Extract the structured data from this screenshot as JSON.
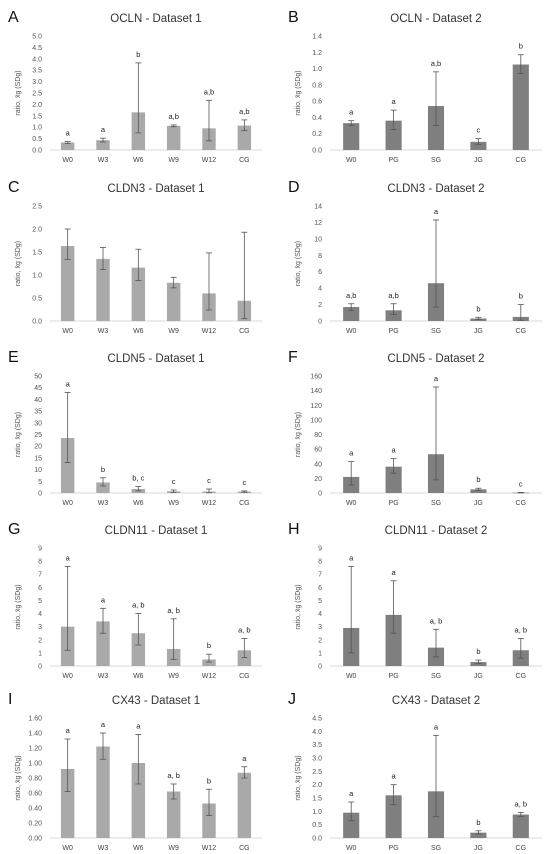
{
  "colors": {
    "bar_dataset1": "#a9a9a9",
    "bar_dataset2": "#7f7f7f",
    "axis": "#d9d9d9",
    "error_bar": "#555555"
  },
  "chart_data": [
    {
      "panel": "A",
      "type": "bar",
      "title": "OCLN - Dataset 1",
      "ylabel": "ratio, x̄g (SDg)",
      "ylim": [
        0,
        5
      ],
      "yticks": [
        "0.0",
        "0.5",
        "1.0",
        "1.5",
        "2.0",
        "2.5",
        "3.0",
        "3.5",
        "4.0",
        "4.5",
        "5.0"
      ],
      "categories": [
        "W0",
        "W3",
        "W6",
        "W9",
        "W12",
        "CG"
      ],
      "values": [
        0.33,
        0.43,
        1.65,
        1.06,
        0.95,
        1.07
      ],
      "err_low": [
        0.29,
        0.35,
        0.75,
        1.02,
        0.4,
        0.85
      ],
      "err_high": [
        0.37,
        0.52,
        3.82,
        1.1,
        2.18,
        1.32
      ],
      "labels": [
        "a",
        "a",
        "b",
        "a,b",
        "a,b",
        "a,b"
      ]
    },
    {
      "panel": "B",
      "type": "bar",
      "title": "OCLN - Dataset 2",
      "ylabel": "ratio, x̄g (SDg)",
      "ylim": [
        0,
        1.4
      ],
      "yticks": [
        "0.0",
        "0.2",
        "0.4",
        "0.6",
        "0.8",
        "1.0",
        "1.2",
        "1.4"
      ],
      "categories": [
        "W0",
        "PG",
        "SG",
        "JG",
        "CG"
      ],
      "values": [
        0.33,
        0.36,
        0.54,
        0.1,
        1.05
      ],
      "err_low": [
        0.3,
        0.25,
        0.3,
        0.07,
        0.94
      ],
      "err_high": [
        0.36,
        0.49,
        0.96,
        0.14,
        1.17
      ],
      "labels": [
        "a",
        "a",
        "a,b",
        "c",
        "b"
      ]
    },
    {
      "panel": "C",
      "type": "bar",
      "title": "CLDN3 - Dataset 1",
      "ylabel": "ratio, x̄g (SDg)",
      "ylim": [
        0,
        2.5
      ],
      "yticks": [
        "0.0",
        "0.5",
        "1.0",
        "1.5",
        "2.0",
        "2.5"
      ],
      "categories": [
        "W0",
        "W3",
        "W6",
        "W9",
        "W12",
        "CG"
      ],
      "values": [
        1.63,
        1.35,
        1.16,
        0.83,
        0.6,
        0.44
      ],
      "err_low": [
        1.34,
        1.12,
        0.88,
        0.72,
        0.24,
        0.05
      ],
      "err_high": [
        2.0,
        1.6,
        1.56,
        0.95,
        1.48,
        1.93
      ],
      "labels": [
        "",
        "",
        "",
        "",
        "",
        ""
      ]
    },
    {
      "panel": "D",
      "type": "bar",
      "title": "CLDN3 - Dataset 2",
      "ylabel": "ratio, x̄g (SDg)",
      "ylim": [
        0,
        14
      ],
      "yticks": [
        "0",
        "2",
        "4",
        "6",
        "8",
        "10",
        "12",
        "14"
      ],
      "categories": [
        "W0",
        "PG",
        "SG",
        "JG",
        "CG"
      ],
      "values": [
        1.7,
        1.3,
        4.6,
        0.3,
        0.5
      ],
      "err_low": [
        1.3,
        0.8,
        1.7,
        0.2,
        0.1
      ],
      "err_high": [
        2.1,
        2.1,
        12.3,
        0.45,
        2.0
      ],
      "labels": [
        "a,b",
        "a,b",
        "a",
        "b",
        "b"
      ]
    },
    {
      "panel": "E",
      "type": "bar",
      "title": "CLDN5 - Dataset 1",
      "ylabel": "ratio, x̄g (SDg)",
      "ylim": [
        0,
        50
      ],
      "yticks": [
        "0",
        "5",
        "10",
        "15",
        "20",
        "25",
        "30",
        "35",
        "40",
        "45",
        "50"
      ],
      "categories": [
        "W0",
        "W3",
        "W6",
        "W9",
        "W12",
        "CG"
      ],
      "values": [
        23.5,
        4.5,
        1.7,
        0.7,
        0.6,
        0.6
      ],
      "err_low": [
        13,
        3.0,
        0.9,
        0.3,
        0.1,
        0.3
      ],
      "err_high": [
        43,
        6.5,
        2.8,
        1.3,
        1.7,
        0.9
      ],
      "labels": [
        "a",
        "b",
        "b, c",
        "c",
        "c",
        "c"
      ]
    },
    {
      "panel": "F",
      "type": "bar",
      "title": "CLDN5 - Dataset 2",
      "ylabel": "ratio, x̄g (SDg)",
      "ylim": [
        0,
        160
      ],
      "yticks": [
        "0",
        "20",
        "40",
        "60",
        "80",
        "100",
        "120",
        "140",
        "160"
      ],
      "categories": [
        "W0",
        "PG",
        "SG",
        "JG",
        "CG"
      ],
      "values": [
        22,
        36,
        53,
        5,
        0.5
      ],
      "err_low": [
        11,
        27,
        18,
        3.5,
        0.2
      ],
      "err_high": [
        43,
        47,
        145,
        6.5,
        0.8
      ],
      "labels": [
        "a",
        "a",
        "a",
        "b",
        "c"
      ]
    },
    {
      "panel": "G",
      "type": "bar",
      "title": "CLDN11 - Dataset 1",
      "ylabel": "ratio, x̄g (SDg)",
      "ylim": [
        0,
        9
      ],
      "yticks": [
        "0",
        "1",
        "2",
        "3",
        "4",
        "5",
        "6",
        "7",
        "8",
        "9"
      ],
      "categories": [
        "W0",
        "W3",
        "W6",
        "W9",
        "W12",
        "CG"
      ],
      "values": [
        3.0,
        3.4,
        2.5,
        1.3,
        0.5,
        1.2
      ],
      "err_low": [
        1.2,
        2.5,
        1.6,
        0.5,
        0.3,
        0.65
      ],
      "err_high": [
        7.6,
        4.4,
        4.0,
        3.6,
        0.9,
        2.1
      ],
      "labels": [
        "a",
        "a",
        "a, b",
        "a, b",
        "b",
        "a, b"
      ]
    },
    {
      "panel": "H",
      "type": "bar",
      "title": "CLDN11 - Dataset 2",
      "ylabel": "ratio, x̄g (SDg)",
      "ylim": [
        0,
        9
      ],
      "yticks": [
        "0",
        "1",
        "2",
        "3",
        "4",
        "5",
        "6",
        "7",
        "8",
        "9"
      ],
      "categories": [
        "W0",
        "PG",
        "SG",
        "JG",
        "CG"
      ],
      "values": [
        2.9,
        3.9,
        1.4,
        0.3,
        1.2
      ],
      "err_low": [
        1.0,
        2.5,
        0.7,
        0.2,
        0.6
      ],
      "err_high": [
        7.6,
        6.5,
        2.8,
        0.45,
        2.1
      ],
      "labels": [
        "a",
        "a",
        "a, b",
        "b",
        "a, b"
      ]
    },
    {
      "panel": "I",
      "type": "bar",
      "title": "CX43 - Dataset 1",
      "ylabel": "ratio, x̄g (SDg)",
      "ylim": [
        0,
        1.6
      ],
      "yticks": [
        "0.00",
        "0.20",
        "0.40",
        "0.60",
        "0.80",
        "1.00",
        "1.20",
        "1.40",
        "1.60"
      ],
      "categories": [
        "W0",
        "W3",
        "W6",
        "W9",
        "W12",
        "CG"
      ],
      "values": [
        0.92,
        1.22,
        1.0,
        0.62,
        0.46,
        0.87
      ],
      "err_low": [
        0.62,
        1.05,
        0.72,
        0.52,
        0.3,
        0.8
      ],
      "err_high": [
        1.32,
        1.4,
        1.38,
        0.72,
        0.65,
        0.95
      ],
      "labels": [
        "a",
        "a",
        "a",
        "a, b",
        "b",
        "a"
      ]
    },
    {
      "panel": "J",
      "type": "bar",
      "title": "CX43 - Dataset 2",
      "ylabel": "ratio, x̄g (SDg)",
      "ylim": [
        0,
        4.5
      ],
      "yticks": [
        "0.0",
        "0.5",
        "1.0",
        "1.5",
        "2.0",
        "2.5",
        "3.0",
        "3.5",
        "4.0",
        "4.5"
      ],
      "categories": [
        "W0",
        "PG",
        "SG",
        "JG",
        "CG"
      ],
      "values": [
        0.95,
        1.6,
        1.75,
        0.2,
        0.88
      ],
      "err_low": [
        0.65,
        1.25,
        0.8,
        0.15,
        0.8
      ],
      "err_high": [
        1.35,
        2.0,
        3.85,
        0.27,
        0.96
      ],
      "labels": [
        "a",
        "a",
        "a",
        "b",
        "a, b"
      ]
    }
  ]
}
